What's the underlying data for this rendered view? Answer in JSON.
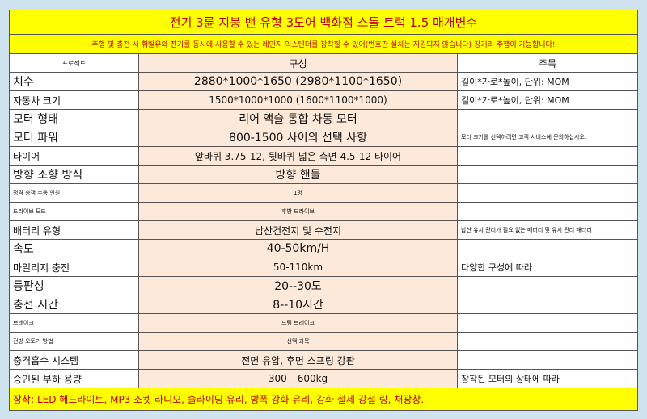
{
  "header": {
    "title": "전기 3륜 지붕 밴 유형 3도어 백화점 스톨 트럭 1.5 매개변수",
    "subtitle": "주행 및 충전 시 휘발유와 전기를 동시에 사용할 수 있는 레인지 익스텐더를 장착할 수 있어(번호판 설치는 지원되지 않습니다) 장거리 주행이 가능합니다!"
  },
  "table": {
    "columns": [
      "프로젝트",
      "구성",
      "주목"
    ],
    "rows": [
      {
        "label": "치수",
        "config": "2880*1000*1650 (2980*1100*1650)",
        "note": "길이*가로*높이, 단위: MOM"
      },
      {
        "label": "자동차 크기",
        "config": "1500*1000*1000 (1600*1100*1000)",
        "note": "길이*가로*높이, 단위: MOM"
      },
      {
        "label": "모터 형태",
        "config": "리어 액슬 통합 차동 모터"
      },
      {
        "label": "모터 파워",
        "config": "800-1500 사이의 선택 사항",
        "note": "모터 크기를 선택하려면 고객 서비스에 문의하십시오."
      },
      {
        "label": "타이어",
        "config": "앞바퀴 3.75-12, 뒷바퀴 넓은 측면 4.5-12 타이어"
      },
      {
        "label": "방향 조향 방식",
        "config": "방향 핸들"
      },
      {
        "label": "정격 승객 수용 인원",
        "config": "1명"
      },
      {
        "label": "드라이브 모드",
        "config": "후방 드라이브"
      },
      {
        "label": "배터리 유형",
        "config": "납산건전지 및 수전지",
        "note": "납산 유지 관리가 필요 없는 배터리 및 유지 관리 배터리"
      },
      {
        "label": "속도",
        "config": "40-50km/H"
      },
      {
        "label": "마일리지 충전",
        "config": "50-110km",
        "note": "다양한 구성에 따라"
      },
      {
        "label": "등판성",
        "config": "20--30도"
      },
      {
        "label": "충전 시간",
        "config": "8--10시간"
      },
      {
        "label": "브레이크",
        "config": "드럼 브레이크"
      },
      {
        "label": "전방 오토기 방법",
        "config": "선택 과목"
      },
      {
        "label": "충격흡수 시스템",
        "config": "전면 유압, 후면 스프링 강판"
      },
      {
        "label": "승인된 부하 용량",
        "config": "300---600kg",
        "note": "장착된 모터의 상태에 따라"
      }
    ]
  },
  "footer": {
    "text": "장착: LED 헤드라이트, MP3 소켓 라디오, 슬라이딩 유리, 방폭 강화 유리, 강화 철제 강철 링, 채광창."
  }
}
